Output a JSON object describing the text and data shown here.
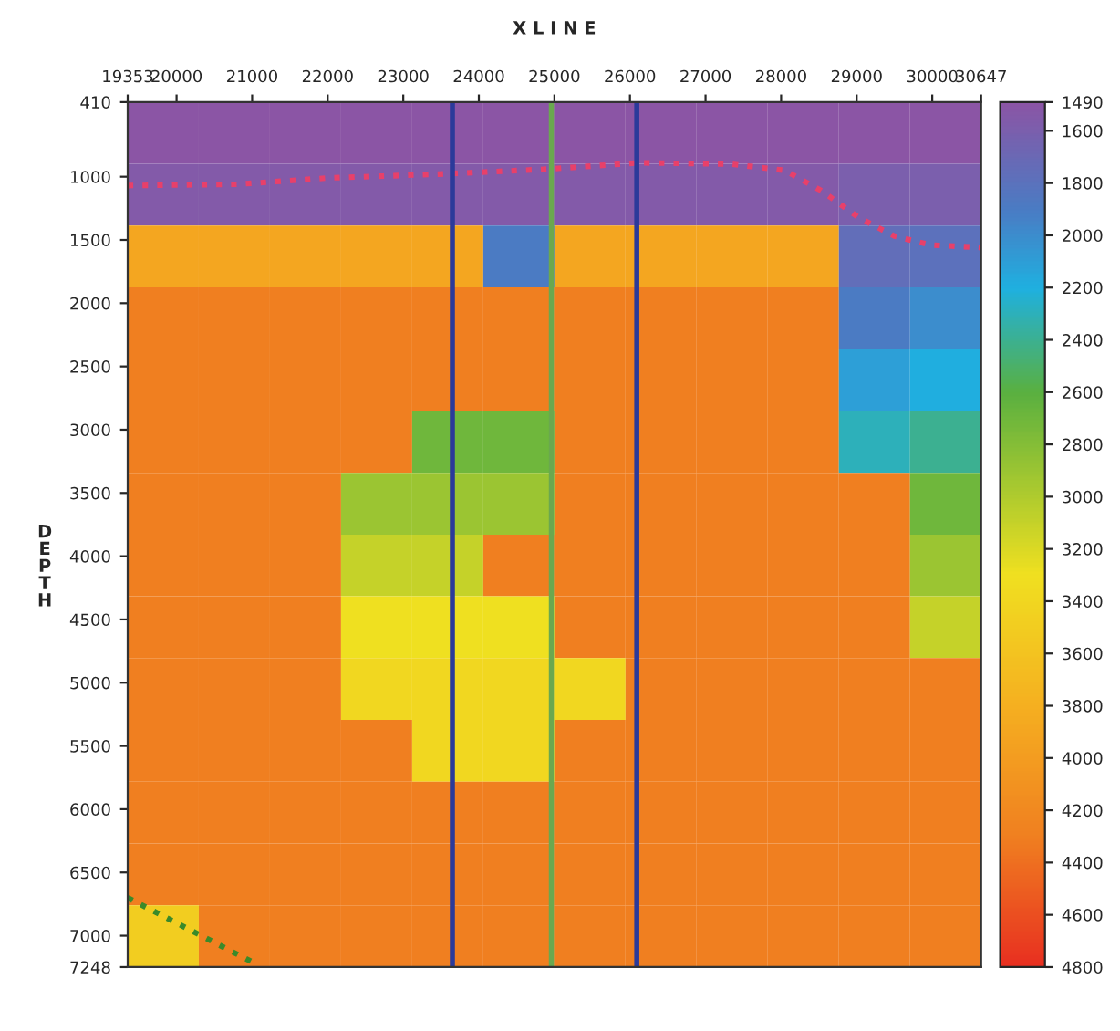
{
  "chart_data": {
    "type": "heatmap",
    "title": "X L I N E",
    "ylabel": "D E P T H",
    "xlim": [
      19353,
      30647
    ],
    "xticks": [
      19353,
      20000,
      21000,
      22000,
      23000,
      24000,
      25000,
      26000,
      27000,
      28000,
      29000,
      30000,
      30647
    ],
    "ylim": [
      7248,
      410
    ],
    "yticks": [
      410,
      1000,
      1500,
      2000,
      2500,
      3000,
      3500,
      4000,
      4500,
      5000,
      5500,
      6000,
      6500,
      7000,
      7248
    ],
    "clim": [
      1490,
      4800
    ],
    "cticks": [
      1490,
      1600,
      1800,
      2000,
      2200,
      2400,
      2600,
      2800,
      3000,
      3200,
      3400,
      3600,
      3800,
      4000,
      4200,
      4400,
      4600,
      4800
    ],
    "cells": [
      [
        1500,
        1500,
        1500,
        1500,
        1500,
        1500,
        1500,
        1500,
        1500,
        1500,
        1500,
        1500
      ],
      [
        1550,
        1550,
        1550,
        1550,
        1550,
        1550,
        1550,
        1550,
        1550,
        1550,
        1600,
        1600
      ],
      [
        3900,
        3900,
        3900,
        3900,
        3900,
        1900,
        3900,
        3900,
        3900,
        3900,
        1750,
        1800
      ],
      [
        4300,
        4300,
        4300,
        4300,
        4300,
        4300,
        4300,
        4300,
        4300,
        4300,
        1900,
        2000
      ],
      [
        4300,
        4300,
        4300,
        4300,
        4300,
        4300,
        4300,
        4300,
        4300,
        4300,
        2100,
        2200
      ],
      [
        4300,
        4300,
        4300,
        4300,
        2700,
        2700,
        4300,
        4300,
        4300,
        4300,
        2300,
        2400
      ],
      [
        4300,
        4300,
        4300,
        2900,
        2900,
        2900,
        4300,
        4300,
        4300,
        4300,
        4300,
        2700
      ],
      [
        4300,
        4300,
        4300,
        3100,
        3100,
        4300,
        4300,
        4300,
        4300,
        4300,
        4300,
        2900
      ],
      [
        4300,
        4300,
        4300,
        3300,
        3300,
        3300,
        4300,
        4300,
        4300,
        4300,
        4300,
        3100
      ],
      [
        4300,
        4300,
        4300,
        3400,
        3400,
        3400,
        3400,
        4300,
        4300,
        4300,
        4300,
        4300
      ],
      [
        4300,
        4300,
        4300,
        4300,
        3400,
        3400,
        4300,
        4300,
        4300,
        4300,
        4300,
        4300
      ],
      [
        4300,
        4300,
        4300,
        4300,
        4300,
        4300,
        4300,
        4300,
        4300,
        4300,
        4300,
        4300
      ],
      [
        4300,
        4300,
        4300,
        4300,
        4300,
        4300,
        4300,
        4300,
        4300,
        4300,
        4300,
        4300
      ],
      [
        3500,
        4300,
        4300,
        4300,
        4300,
        4300,
        4300,
        4300,
        4300,
        4300,
        4300,
        4300
      ]
    ],
    "series": [
      {
        "type": "line",
        "color": "#e8406a",
        "line_style": "dotted",
        "x": [
          19353,
          20800,
          22000,
          23460,
          24910,
          26120,
          27330,
          28050,
          28530,
          29020,
          29500,
          29980,
          30647
        ],
        "values": [
          1070,
          1060,
          1010,
          980,
          940,
          890,
          900,
          950,
          1110,
          1320,
          1470,
          1540,
          1560
        ]
      },
      {
        "type": "line",
        "color": "#3a8a2a",
        "line_style": "dotted",
        "x": [
          19353,
          21040
        ],
        "values": [
          6700,
          7220
        ]
      }
    ],
    "ref_lines": [
      {
        "axis": "x",
        "value": 23650,
        "color": "#2b3a9a",
        "line_style": "solid"
      },
      {
        "axis": "x",
        "value": 26090,
        "color": "#2b3a9a",
        "line_style": "solid"
      },
      {
        "axis": "x",
        "value": 24960,
        "color": "#6aa84f",
        "line_style": "solid"
      }
    ]
  }
}
